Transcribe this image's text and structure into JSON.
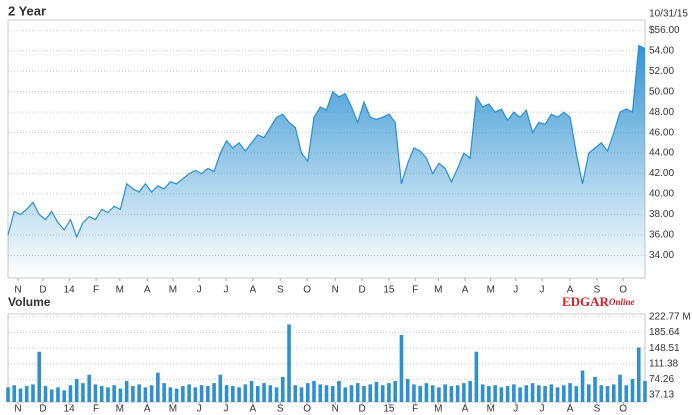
{
  "chart_data": [
    {
      "type": "area",
      "title": "2 Year",
      "annotation": "10/31/15",
      "color": "#2a8fd0",
      "grid": true,
      "x": [
        0,
        1,
        2,
        3,
        4,
        5,
        6,
        7,
        8,
        9,
        10,
        11,
        12,
        13,
        14,
        15,
        16,
        17,
        18,
        19,
        20,
        21,
        22,
        23,
        24,
        25,
        26,
        27,
        28,
        29,
        30,
        31,
        32,
        33,
        34,
        35,
        36,
        37,
        38,
        39,
        40,
        41,
        42,
        43,
        44,
        45,
        46,
        47,
        48,
        49,
        50,
        51,
        52,
        53,
        54,
        55,
        56,
        57,
        58,
        59,
        60,
        61,
        62,
        63,
        64,
        65,
        66,
        67,
        68,
        69,
        70,
        71,
        72,
        73,
        74,
        75,
        76,
        77,
        78,
        79,
        80,
        81,
        82,
        83,
        84,
        85,
        86,
        87,
        88,
        89,
        90,
        91,
        92,
        93,
        94,
        95,
        96,
        97,
        98,
        99,
        100,
        101,
        102
      ],
      "values": [
        36,
        38.3,
        38,
        38.5,
        39.2,
        38,
        37.5,
        38.3,
        37.2,
        36.5,
        37.5,
        35.8,
        37.2,
        37.8,
        37.5,
        38.5,
        38.2,
        38.8,
        38.5,
        41,
        40.5,
        40.2,
        41,
        40.2,
        40.8,
        40.5,
        41.2,
        41,
        41.5,
        42,
        42.3,
        42,
        42.5,
        42.2,
        44,
        45.2,
        44.5,
        45,
        44.2,
        45,
        45.8,
        45.5,
        46.5,
        47.5,
        47.8,
        47,
        46.5,
        44,
        43.2,
        47.5,
        48.5,
        48.2,
        50,
        49.5,
        49.8,
        48.5,
        47,
        49,
        47.5,
        47.3,
        47.5,
        47.8,
        47,
        41,
        43,
        44.5,
        44.2,
        43.5,
        42,
        43,
        42.5,
        41.2,
        42.5,
        44,
        43.5,
        49.5,
        48.5,
        48.8,
        48,
        48.3,
        47.2,
        48,
        47.5,
        48.2,
        46,
        47,
        46.8,
        47.8,
        47.5,
        48,
        47.5,
        44,
        41,
        44,
        44.5,
        45,
        44.2,
        46,
        48,
        48.3,
        48,
        54.5,
        54.2
      ],
      "xlim": [
        0,
        102
      ],
      "xticks": [
        {
          "value": 1.6,
          "label": "N"
        },
        {
          "value": 5.6,
          "label": "D"
        },
        {
          "value": 9.8,
          "label": "14"
        },
        {
          "value": 14.1,
          "label": "F"
        },
        {
          "value": 17.9,
          "label": "M"
        },
        {
          "value": 22.3,
          "label": "A"
        },
        {
          "value": 26.4,
          "label": "M"
        },
        {
          "value": 30.6,
          "label": "J"
        },
        {
          "value": 34.9,
          "label": "J"
        },
        {
          "value": 39.2,
          "label": "A"
        },
        {
          "value": 43.6,
          "label": "S"
        },
        {
          "value": 47.9,
          "label": "O"
        },
        {
          "value": 52.4,
          "label": "N"
        },
        {
          "value": 56.7,
          "label": "D"
        },
        {
          "value": 61,
          "label": "15"
        },
        {
          "value": 65.2,
          "label": "F"
        },
        {
          "value": 68.9,
          "label": "M"
        },
        {
          "value": 73.2,
          "label": "A"
        },
        {
          "value": 77.3,
          "label": "M"
        },
        {
          "value": 81.3,
          "label": "J"
        },
        {
          "value": 85.5,
          "label": "J"
        },
        {
          "value": 90,
          "label": "A"
        },
        {
          "value": 94.3,
          "label": "S"
        },
        {
          "value": 98.5,
          "label": "O"
        }
      ],
      "ylim": [
        31.8,
        57
      ],
      "yticks": [
        {
          "value": 56,
          "label": "$56.00"
        },
        {
          "value": 54,
          "label": "54.00"
        },
        {
          "value": 52,
          "label": "52.00"
        },
        {
          "value": 50,
          "label": "50.00"
        },
        {
          "value": 48,
          "label": "48.00"
        },
        {
          "value": 46,
          "label": "46.00"
        },
        {
          "value": 44,
          "label": "44.00"
        },
        {
          "value": 42,
          "label": "42.00"
        },
        {
          "value": 40,
          "label": "40.00"
        },
        {
          "value": 38,
          "label": "38.00"
        },
        {
          "value": 36,
          "label": "36.00"
        },
        {
          "value": 34,
          "label": "34.00"
        }
      ]
    },
    {
      "type": "bar",
      "title": "Volume",
      "logo_text": "EDGAR",
      "logo_suffix": "Online",
      "color": "#2f8fcf",
      "grid": true,
      "x": [
        0,
        1,
        2,
        3,
        4,
        5,
        6,
        7,
        8,
        9,
        10,
        11,
        12,
        13,
        14,
        15,
        16,
        17,
        18,
        19,
        20,
        21,
        22,
        23,
        24,
        25,
        26,
        27,
        28,
        29,
        30,
        31,
        32,
        33,
        34,
        35,
        36,
        37,
        38,
        39,
        40,
        41,
        42,
        43,
        44,
        45,
        46,
        47,
        48,
        49,
        50,
        51,
        52,
        53,
        54,
        55,
        56,
        57,
        58,
        59,
        60,
        61,
        62,
        63,
        64,
        65,
        66,
        67,
        68,
        69,
        70,
        71,
        72,
        73,
        74,
        75,
        76,
        77,
        78,
        79,
        80,
        81,
        82,
        83,
        84,
        85,
        86,
        87,
        88,
        89,
        90,
        91,
        92,
        93,
        94,
        95,
        96,
        97,
        98,
        99,
        100,
        101,
        102
      ],
      "values": [
        55,
        60,
        52,
        58,
        62,
        140,
        58,
        50,
        55,
        48,
        60,
        75,
        65,
        85,
        62,
        58,
        55,
        60,
        52,
        70,
        58,
        62,
        55,
        60,
        90,
        65,
        55,
        52,
        58,
        62,
        55,
        60,
        58,
        65,
        85,
        60,
        58,
        55,
        62,
        70,
        58,
        65,
        60,
        55,
        80,
        205,
        60,
        55,
        65,
        70,
        62,
        60,
        58,
        70,
        55,
        60,
        65,
        58,
        62,
        68,
        60,
        65,
        70,
        180,
        75,
        62,
        58,
        65,
        60,
        55,
        62,
        58,
        60,
        65,
        70,
        140,
        62,
        58,
        60,
        55,
        58,
        62,
        55,
        60,
        65,
        60,
        58,
        62,
        55,
        60,
        65,
        58,
        95,
        62,
        80,
        60,
        58,
        62,
        85,
        60,
        75,
        150,
        70
      ],
      "xlim": [
        0,
        102
      ],
      "xticks": [
        {
          "value": 1.6,
          "label": "N"
        },
        {
          "value": 5.6,
          "label": "D"
        },
        {
          "value": 9.8,
          "label": "14"
        },
        {
          "value": 14.1,
          "label": "F"
        },
        {
          "value": 17.9,
          "label": "M"
        },
        {
          "value": 22.3,
          "label": "A"
        },
        {
          "value": 26.4,
          "label": "M"
        },
        {
          "value": 30.6,
          "label": "J"
        },
        {
          "value": 34.9,
          "label": "J"
        },
        {
          "value": 39.2,
          "label": "A"
        },
        {
          "value": 43.6,
          "label": "S"
        },
        {
          "value": 47.9,
          "label": "O"
        },
        {
          "value": 52.4,
          "label": "N"
        },
        {
          "value": 56.7,
          "label": "D"
        },
        {
          "value": 61,
          "label": "15"
        },
        {
          "value": 65.2,
          "label": "F"
        },
        {
          "value": 68.9,
          "label": "M"
        },
        {
          "value": 73.2,
          "label": "A"
        },
        {
          "value": 77.3,
          "label": "M"
        },
        {
          "value": 81.3,
          "label": "J"
        },
        {
          "value": 85.5,
          "label": "J"
        },
        {
          "value": 90,
          "label": "A"
        },
        {
          "value": 94.3,
          "label": "S"
        },
        {
          "value": 98.5,
          "label": "O"
        }
      ],
      "ylim": [
        20,
        230
      ],
      "yticks": [
        {
          "value": 222.77,
          "label": "222.77 M"
        },
        185.64,
        148.51,
        111.38,
        74.26,
        37.13
      ]
    }
  ]
}
